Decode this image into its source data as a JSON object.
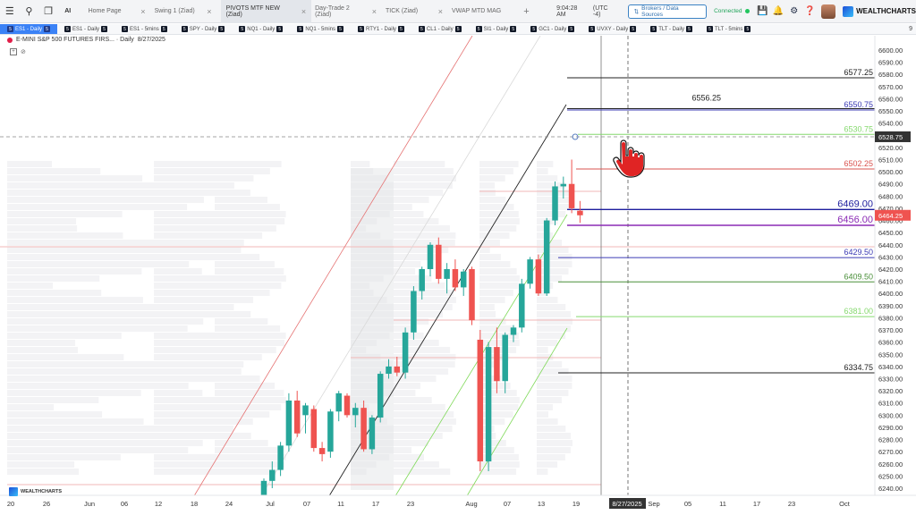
{
  "toolbar": {
    "menu_icon": "hamburger-icon",
    "search_icon": "search-icon",
    "copy_icon": "copy-icon",
    "ai_label": "AI",
    "tabs": [
      {
        "label": "Home Page",
        "active": false
      },
      {
        "label": "Swing 1 (Ziad)",
        "active": false
      },
      {
        "label": "PIVOTS MTF NEW (Ziad)",
        "active": true
      },
      {
        "label": "Day-Trade 2 (Ziad)",
        "active": false
      },
      {
        "label": "TICK (Ziad)",
        "active": false
      },
      {
        "label": "VWAP MTD MAG",
        "active": false
      }
    ],
    "add_tab": "+",
    "time": "9:04:28 AM",
    "timezone": "(UTC -4)",
    "broker_button": "Brokers / Data Sources",
    "status": "Connected",
    "logo_text": "WEALTHCHARTS"
  },
  "symbols": [
    {
      "label": "ES1 - Daily",
      "active": true
    },
    {
      "label": "ES1 - Daily",
      "active": false
    },
    {
      "label": "ES1 - 5mins",
      "active": false
    },
    {
      "label": "SPY - Daily",
      "active": false
    },
    {
      "label": "NQ1 - Daily",
      "active": false
    },
    {
      "label": "NQ1 - 5mins",
      "active": false
    },
    {
      "label": "RTY1 - Daily",
      "active": false
    },
    {
      "label": "CL1 - Daily",
      "active": false
    },
    {
      "label": "SI1 - Daily",
      "active": false
    },
    {
      "label": "GC1 - Daily",
      "active": false
    },
    {
      "label": "UVXY - Daily",
      "active": false
    },
    {
      "label": "TLT - Daily",
      "active": false
    },
    {
      "label": "TLT - 5mins",
      "active": false
    }
  ],
  "symbol_badge": "5",
  "strip_end": "9",
  "chart": {
    "title": "E-MINI S&P 500 FUTURES FIRS... · Daily",
    "date": "8/27/2025",
    "watermark": "WEALTHCHARTS",
    "current_price": "6528.75",
    "last_price": "6464.25",
    "crosshair_date": "8/27/2025",
    "pivot_labels": [
      {
        "text": "6577.25",
        "price": 6577.25,
        "color": "#222222"
      },
      {
        "text": "6556.25",
        "price": 6556.25,
        "color": "#222222"
      },
      {
        "text": "6550.75",
        "price": 6550.75,
        "color": "#3b3bb5"
      },
      {
        "text": "6530.75",
        "price": 6530.75,
        "color": "#86d96f"
      },
      {
        "text": "6502.25",
        "price": 6502.25,
        "color": "#d9534f"
      },
      {
        "text": "6469.00",
        "price": 6469.0,
        "color": "#1e1e9e"
      },
      {
        "text": "6456.00",
        "price": 6456.0,
        "color": "#8b2bb5"
      },
      {
        "text": "6429.50",
        "price": 6429.5,
        "color": "#3b3bb5"
      },
      {
        "text": "6409.50",
        "price": 6409.5,
        "color": "#4a8f3a"
      },
      {
        "text": "6381.00",
        "price": 6381.0,
        "color": "#86d96f"
      },
      {
        "text": "6334.75",
        "price": 6334.75,
        "color": "#222222"
      }
    ],
    "y_ticks": [
      "6600.00",
      "6590.00",
      "6580.00",
      "6570.00",
      "6560.00",
      "6550.00",
      "6540.00",
      "6530.00",
      "6520.00",
      "6510.00",
      "6500.00",
      "6490.00",
      "6480.00",
      "6470.00",
      "6460.00",
      "6450.00",
      "6440.00",
      "6430.00",
      "6420.00",
      "6410.00",
      "6400.00",
      "6390.00",
      "6380.00",
      "6370.00",
      "6360.00",
      "6350.00",
      "6340.00",
      "6330.00",
      "6320.00",
      "6310.00",
      "6300.00",
      "6290.00",
      "6280.00",
      "6270.00",
      "6260.00",
      "6250.00",
      "6240.00"
    ],
    "x_ticks": [
      "20",
      "26",
      "Jun",
      "06",
      "12",
      "18",
      "24",
      "Jul",
      "07",
      "11",
      "17",
      "23",
      "Aug",
      "07",
      "13",
      "19",
      "Sep",
      "05",
      "11",
      "17",
      "23",
      "Oct"
    ],
    "candles": [
      {
        "o": 6232,
        "h": 6248,
        "l": 6228,
        "c": 6246
      },
      {
        "o": 6246,
        "h": 6262,
        "l": 6240,
        "c": 6255
      },
      {
        "o": 6255,
        "h": 6278,
        "l": 6250,
        "c": 6275
      },
      {
        "o": 6275,
        "h": 6318,
        "l": 6270,
        "c": 6312
      },
      {
        "o": 6312,
        "h": 6320,
        "l": 6282,
        "c": 6285
      },
      {
        "o": 6300,
        "h": 6310,
        "l": 6285,
        "c": 6308
      },
      {
        "o": 6305,
        "h": 6308,
        "l": 6270,
        "c": 6273
      },
      {
        "o": 6273,
        "h": 6278,
        "l": 6262,
        "c": 6268
      },
      {
        "o": 6270,
        "h": 6305,
        "l": 6265,
        "c": 6303
      },
      {
        "o": 6303,
        "h": 6320,
        "l": 6295,
        "c": 6318
      },
      {
        "o": 6316,
        "h": 6318,
        "l": 6298,
        "c": 6300
      },
      {
        "o": 6300,
        "h": 6310,
        "l": 6290,
        "c": 6306
      },
      {
        "o": 6306,
        "h": 6312,
        "l": 6270,
        "c": 6272
      },
      {
        "o": 6272,
        "h": 6300,
        "l": 6268,
        "c": 6298
      },
      {
        "o": 6298,
        "h": 6336,
        "l": 6294,
        "c": 6334
      },
      {
        "o": 6334,
        "h": 6346,
        "l": 6330,
        "c": 6340
      },
      {
        "o": 6340,
        "h": 6348,
        "l": 6332,
        "c": 6335
      },
      {
        "o": 6335,
        "h": 6372,
        "l": 6330,
        "c": 6368
      },
      {
        "o": 6368,
        "h": 6406,
        "l": 6362,
        "c": 6402
      },
      {
        "o": 6402,
        "h": 6422,
        "l": 6395,
        "c": 6420
      },
      {
        "o": 6420,
        "h": 6442,
        "l": 6414,
        "c": 6440
      },
      {
        "o": 6440,
        "h": 6446,
        "l": 6408,
        "c": 6412
      },
      {
        "o": 6412,
        "h": 6425,
        "l": 6400,
        "c": 6420
      },
      {
        "o": 6420,
        "h": 6428,
        "l": 6402,
        "c": 6405
      },
      {
        "o": 6405,
        "h": 6420,
        "l": 6398,
        "c": 6418
      },
      {
        "o": 6420,
        "h": 6422,
        "l": 6374,
        "c": 6378
      },
      {
        "o": 6362,
        "h": 6370,
        "l": 6254,
        "c": 6262
      },
      {
        "o": 6262,
        "h": 6360,
        "l": 6254,
        "c": 6356
      },
      {
        "o": 6356,
        "h": 6372,
        "l": 6318,
        "c": 6328
      },
      {
        "o": 6328,
        "h": 6368,
        "l": 6318,
        "c": 6366
      },
      {
        "o": 6366,
        "h": 6374,
        "l": 6360,
        "c": 6372
      },
      {
        "o": 6372,
        "h": 6412,
        "l": 6368,
        "c": 6408
      },
      {
        "o": 6408,
        "h": 6430,
        "l": 6404,
        "c": 6428
      },
      {
        "o": 6428,
        "h": 6432,
        "l": 6398,
        "c": 6400
      },
      {
        "o": 6400,
        "h": 6462,
        "l": 6398,
        "c": 6460
      },
      {
        "o": 6460,
        "h": 6492,
        "l": 6456,
        "c": 6488
      },
      {
        "o": 6488,
        "h": 6496,
        "l": 6478,
        "c": 6490
      },
      {
        "o": 6490,
        "h": 6510,
        "l": 6466,
        "c": 6470
      },
      {
        "o": 6468,
        "h": 6476,
        "l": 6458,
        "c": 6464.25
      }
    ]
  }
}
